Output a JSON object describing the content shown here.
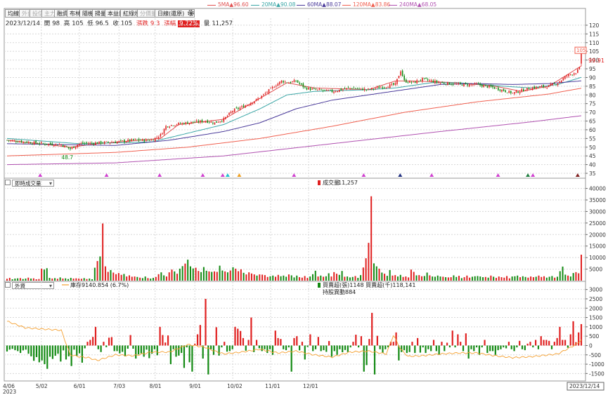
{
  "toolbar": {
    "buttons": [
      {
        "label": "均線",
        "enabled": true
      },
      {
        "label": "外資",
        "enabled": false
      },
      {
        "label": "投信",
        "enabled": false
      },
      {
        "label": "主力",
        "enabled": false
      },
      {
        "label": "融資",
        "enabled": true
      },
      {
        "label": "布林",
        "enabled": true
      },
      {
        "label": "隨機",
        "enabled": true
      },
      {
        "label": "掃量",
        "enabled": true
      },
      {
        "label": "本益比",
        "enabled": true
      },
      {
        "label": "紅綠燈",
        "enabled": true
      },
      {
        "label": "分價量",
        "enabled": false
      }
    ],
    "period_select": "日線(還原)",
    "settings_icon": "gear-icon"
  },
  "ma_legend": [
    {
      "label": "5MA",
      "arrow": "▲",
      "value": "96.60",
      "color": "#e05050"
    },
    {
      "label": "20MA",
      "arrow": "▲",
      "value": "90.08",
      "color": "#3aa6a6"
    },
    {
      "label": "60MA",
      "arrow": "▲",
      "value": "88.07",
      "color": "#4a3a9a"
    },
    {
      "label": "120MA",
      "arrow": "▲",
      "value": "83.86",
      "color": "#f06050"
    },
    {
      "label": "240MA",
      "arrow": "▲",
      "value": "68.05",
      "color": "#b050b0"
    }
  ],
  "quote": {
    "date": "2023/12/14",
    "open_label": "開",
    "open": "98",
    "high_label": "高",
    "high": "105",
    "low_label": "低",
    "low": "96.5",
    "close_label": "收",
    "close": "105",
    "change_label": "漲跌",
    "change": "9.3",
    "pct_label": "漲幅",
    "pct": "9.72%",
    "vol_label": "量",
    "vol": "11,257"
  },
  "price_axis": {
    "ticks": [
      "120",
      "115",
      "110",
      "105",
      "100",
      "95",
      "90",
      "85",
      "80",
      "75",
      "70",
      "65",
      "60",
      "55",
      "50",
      "45",
      "40",
      "35"
    ],
    "last_badge": "105",
    "last_price": "99.91",
    "low_marker": "48.7"
  },
  "volume_panel": {
    "select": "即時成交量",
    "legend": "成交量",
    "legend_value": "11,257",
    "ticks": [
      "40000",
      "35000",
      "30000",
      "25000",
      "20000",
      "15000",
      "10000",
      "5000"
    ]
  },
  "foreign_panel": {
    "select": "外資",
    "legend_line": "庫存9140.854 (6.7%)",
    "legend_bar": "買賣超(張)1148 買賣超(千)118,141",
    "legend_sub": "持股異動884",
    "ticks": [
      "3000",
      "2500",
      "2000",
      "1500",
      "1000",
      "500",
      "0",
      "-500",
      "-1000",
      "-1500"
    ]
  },
  "x_axis": {
    "labels": [
      "4/06",
      "5/02",
      "6/01",
      "7/03",
      "8/01",
      "9/01",
      "10/02",
      "11/01",
      "12/01",
      "2023/12/14"
    ],
    "year": "2023"
  },
  "colors": {
    "up": "#e02020",
    "down": "#138a13",
    "grid": "#d8d8d8",
    "axis_text": "#333"
  },
  "chart_data": [
    {
      "type": "candlestick",
      "title": "",
      "ylim": [
        33,
        124
      ],
      "x_labels": [
        "4/06",
        "5/02",
        "6/01",
        "7/03",
        "8/01",
        "9/01",
        "10/02",
        "11/01",
        "12/01",
        "2023/12/14"
      ],
      "close_path": [
        [
          0,
          54
        ],
        [
          10,
          53
        ],
        [
          20,
          52
        ],
        [
          30,
          51.5
        ],
        [
          35,
          49
        ],
        [
          40,
          52
        ],
        [
          50,
          52.5
        ],
        [
          60,
          53
        ],
        [
          70,
          54
        ],
        [
          80,
          54
        ],
        [
          85,
          57
        ],
        [
          88,
          62
        ],
        [
          92,
          63
        ],
        [
          100,
          64
        ],
        [
          110,
          65
        ],
        [
          115,
          64
        ],
        [
          120,
          66
        ],
        [
          125,
          71
        ],
        [
          130,
          73
        ],
        [
          138,
          77
        ],
        [
          142,
          80
        ],
        [
          148,
          85
        ],
        [
          152,
          88
        ],
        [
          156,
          87
        ],
        [
          160,
          88
        ],
        [
          165,
          84
        ],
        [
          170,
          83
        ],
        [
          180,
          82
        ],
        [
          190,
          84
        ],
        [
          200,
          83
        ],
        [
          210,
          85
        ],
        [
          215,
          86
        ],
        [
          218,
          94
        ],
        [
          220,
          88
        ],
        [
          225,
          87
        ],
        [
          230,
          89
        ],
        [
          240,
          87
        ],
        [
          250,
          86
        ],
        [
          260,
          86
        ],
        [
          270,
          84
        ],
        [
          280,
          81
        ],
        [
          290,
          84
        ],
        [
          300,
          85
        ],
        [
          305,
          87
        ],
        [
          310,
          91
        ],
        [
          315,
          93
        ],
        [
          317,
          95
        ],
        [
          318,
          105
        ]
      ],
      "open": "98",
      "high": "105",
      "low": "96.5",
      "close": "105",
      "series": [
        {
          "name": "5MA",
          "values": [
            [
              0,
              54
            ],
            [
              35,
              50
            ],
            [
              50,
              52
            ],
            [
              85,
              55
            ],
            [
              95,
              63
            ],
            [
              120,
              66
            ],
            [
              140,
              78
            ],
            [
              155,
              87
            ],
            [
              170,
              84
            ],
            [
              200,
              83
            ],
            [
              215,
              88
            ],
            [
              225,
              88
            ],
            [
              250,
              87
            ],
            [
              270,
              85
            ],
            [
              285,
              82
            ],
            [
              300,
              85
            ],
            [
              318,
              96.6
            ]
          ]
        },
        {
          "name": "20MA",
          "values": [
            [
              0,
              55
            ],
            [
              40,
              52
            ],
            [
              80,
              53
            ],
            [
              100,
              58
            ],
            [
              120,
              63
            ],
            [
              140,
              72
            ],
            [
              155,
              80
            ],
            [
              170,
              82
            ],
            [
              200,
              83
            ],
            [
              215,
              84
            ],
            [
              235,
              87
            ],
            [
              250,
              87
            ],
            [
              275,
              85
            ],
            [
              290,
              84
            ],
            [
              305,
              86
            ],
            [
              318,
              90.08
            ]
          ]
        },
        {
          "name": "60MA",
          "values": [
            [
              0,
              52
            ],
            [
              60,
              51
            ],
            [
              90,
              54
            ],
            [
              120,
              59
            ],
            [
              140,
              64
            ],
            [
              160,
              72
            ],
            [
              180,
              77
            ],
            [
              200,
              80
            ],
            [
              220,
              83
            ],
            [
              240,
              86
            ],
            [
              260,
              86.5
            ],
            [
              280,
              86
            ],
            [
              300,
              86.5
            ],
            [
              318,
              88.07
            ]
          ]
        },
        {
          "name": "120MA",
          "values": [
            [
              0,
              45
            ],
            [
              60,
              47
            ],
            [
              100,
              50
            ],
            [
              140,
              55
            ],
            [
              180,
              62
            ],
            [
              220,
              70
            ],
            [
              260,
              76
            ],
            [
              300,
              80.5
            ],
            [
              318,
              83.86
            ]
          ]
        },
        {
          "name": "240MA",
          "values": [
            [
              0,
              40
            ],
            [
              60,
              41
            ],
            [
              120,
              45
            ],
            [
              180,
              52
            ],
            [
              240,
              59
            ],
            [
              290,
              64.5
            ],
            [
              318,
              68.05
            ]
          ]
        }
      ]
    },
    {
      "type": "bar",
      "title": "成交量",
      "ylim": [
        0,
        42000
      ],
      "values": [
        800,
        1200,
        600,
        900,
        1000,
        1100,
        700,
        900,
        1300,
        900,
        1000,
        600,
        700,
        5200,
        4800,
        5400,
        1200,
        900,
        1100,
        800,
        1400,
        900,
        1000,
        700,
        1200,
        900,
        1000,
        900,
        800,
        1100,
        700,
        900,
        600,
        5600,
        8500,
        10500,
        24800,
        6200,
        3800,
        4600,
        3500,
        2800,
        3300,
        2500,
        2900,
        1800,
        2300,
        1700,
        1800,
        1600,
        1300,
        1100,
        1800,
        1100,
        900,
        1200,
        1600,
        2800,
        3600,
        2300,
        1800,
        3600,
        4800,
        4000,
        3000,
        5200,
        6300,
        7400,
        9100,
        6200,
        5300,
        5600,
        4200,
        3700,
        5900,
        4300,
        4000,
        3800,
        4000,
        3800,
        6500,
        4400,
        4000,
        3600,
        4400,
        5800,
        5200,
        4100,
        4900,
        3400,
        2700,
        3600,
        3100,
        2700,
        2200,
        2700,
        2600,
        2400,
        1600,
        1900,
        2200,
        1700,
        2500,
        1900,
        2200,
        1700,
        2700,
        2300,
        1400,
        2200,
        1500,
        1300,
        2000,
        1200,
        1800,
        2800,
        4300,
        1800,
        2200,
        1700,
        1900,
        3200,
        1800,
        3700,
        3000,
        2500,
        4200,
        1700,
        1800,
        1400,
        1600,
        2000,
        1200,
        2400,
        5700,
        9700,
        16400,
        36600,
        7500,
        6200,
        5200,
        3500,
        3000,
        2100,
        4600,
        2200,
        2400,
        1800,
        2500,
        1600,
        1800,
        1400,
        4800,
        3800,
        2300,
        2400,
        1900,
        2000,
        3500,
        2300,
        1800,
        1700,
        2200,
        1800,
        1700,
        1500,
        1400,
        1500,
        2300,
        1600,
        2100,
        1100,
        1500,
        2200,
        1300,
        1700,
        1900,
        2000,
        1800,
        1500,
        1600,
        1300,
        2200,
        1700,
        1200,
        1800,
        1500,
        1300,
        2000,
        1000,
        1800,
        1900,
        2200,
        1500,
        1900,
        1600,
        1300,
        1800,
        1500,
        1700,
        2200,
        1600,
        1900,
        1300,
        1700,
        2000,
        1300,
        1700,
        4100,
        6100,
        2600,
        2200,
        1800,
        3300,
        3700,
        3200,
        11257
      ],
      "series": [
        {
          "name": "成交量",
          "values": []
        }
      ]
    },
    {
      "type": "bar",
      "title": "外資",
      "ylim": [
        -1900,
        3100
      ],
      "values": [
        -320,
        -220,
        -180,
        -250,
        -300,
        -400,
        -260,
        -220,
        -440,
        -580,
        -820,
        -620,
        -900,
        -800,
        -1000,
        -1250,
        -600,
        -720,
        -550,
        -440,
        -860,
        -260,
        -750,
        -580,
        -1100,
        -220,
        -560,
        -420,
        -920,
        -150,
        200,
        300,
        460,
        1000,
        -200,
        -350,
        200,
        -90,
        420,
        450,
        -300,
        -300,
        -420,
        -340,
        -580,
        -170,
        560,
        -170,
        -700,
        -480,
        -420,
        -600,
        -220,
        -680,
        -440,
        -200,
        -520,
        1000,
        560,
        160,
        540,
        -1000,
        -200,
        -600,
        -540,
        -400,
        -1200,
        -100,
        -900,
        -1400,
        100,
        600,
        1100,
        -700,
        2500,
        -1550,
        -200,
        -500,
        980,
        -540,
        -100,
        200,
        -330,
        -300,
        -200,
        1000,
        900,
        780,
        400,
        -280,
        300,
        1500,
        -350,
        300,
        -150,
        -300,
        -200,
        -400,
        -200,
        -500,
        800,
        400,
        350,
        -200,
        -250,
        -100,
        -1400,
        400,
        500,
        -260,
        200,
        -750,
        -80,
        600,
        -300,
        -200,
        460,
        -300,
        -250,
        -340,
        240,
        -600,
        -300,
        -500,
        -200,
        -360,
        -240,
        -350,
        -100,
        200,
        580,
        -100,
        500,
        -1400,
        -1050,
        350,
        1750,
        -1550,
        520,
        -200,
        -400,
        -200,
        -100,
        200,
        200,
        700,
        -800,
        -350,
        -250,
        -400,
        -350,
        200,
        -400,
        400,
        -380,
        -100,
        -400,
        -200,
        -300,
        300,
        -300,
        -500,
        200,
        -300,
        150,
        -100,
        800,
        -100,
        600,
        200,
        -300,
        650,
        -700,
        -200,
        -300,
        -100,
        -500,
        -100,
        300,
        -400,
        -300,
        -300,
        -500,
        -250,
        -200,
        -100,
        -150,
        200,
        -200,
        -300,
        -100,
        250,
        -200,
        -250,
        100,
        200,
        -100,
        300,
        -200,
        500,
        300,
        300,
        250,
        -200,
        200,
        400,
        1000,
        300,
        300,
        -120,
        600,
        1300,
        180,
        700,
        1148
      ],
      "series": [
        {
          "name": "買賣超(張)",
          "values": []
        },
        {
          "name": "庫存",
          "values": [
            [
              0,
              1300
            ],
            [
              10,
              950
            ],
            [
              20,
              880
            ],
            [
              30,
              820
            ],
            [
              35,
              -500
            ],
            [
              40,
              -600
            ],
            [
              45,
              -650
            ],
            [
              50,
              -800
            ],
            [
              60,
              -500
            ],
            [
              70,
              -550
            ],
            [
              80,
              -350
            ],
            [
              90,
              -350
            ],
            [
              100,
              50
            ],
            [
              110,
              -100
            ],
            [
              115,
              -300
            ],
            [
              120,
              -450
            ],
            [
              130,
              -350
            ],
            [
              140,
              -200
            ],
            [
              150,
              -400
            ],
            [
              160,
              -300
            ],
            [
              170,
              -500
            ],
            [
              180,
              -620
            ],
            [
              190,
              -350
            ],
            [
              200,
              -300
            ],
            [
              210,
              -450
            ],
            [
              214,
              550
            ],
            [
              218,
              -200
            ],
            [
              222,
              -580
            ],
            [
              230,
              -550
            ],
            [
              240,
              -450
            ],
            [
              250,
              -400
            ],
            [
              260,
              -400
            ],
            [
              270,
              -550
            ],
            [
              280,
              -650
            ],
            [
              290,
              -600
            ],
            [
              300,
              -500
            ],
            [
              305,
              -450
            ],
            [
              310,
              -200
            ],
            [
              315,
              50
            ],
            [
              318,
              300
            ]
          ]
        }
      ]
    }
  ]
}
